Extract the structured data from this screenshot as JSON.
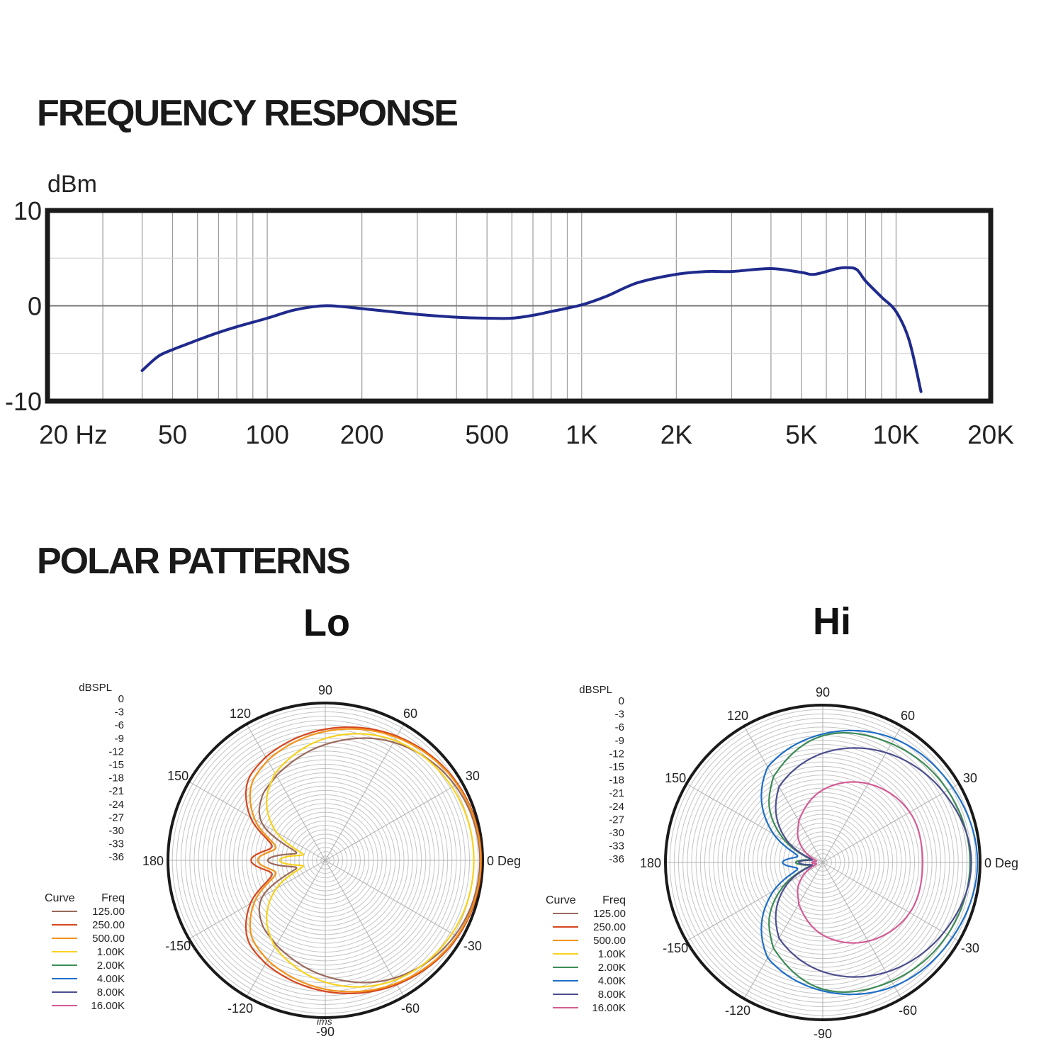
{
  "page": {
    "freq_title": "FREQUENCY RESPONSE",
    "polar_title": "POLAR PATTERNS"
  },
  "chart_data": [
    {
      "type": "line",
      "title": "FREQUENCY RESPONSE",
      "ylabel": "dBm",
      "xlabel": "",
      "x_scale": "log",
      "xlim": [
        20,
        20000
      ],
      "ylim": [
        -10,
        10
      ],
      "grid": true,
      "x_tick_labels": [
        {
          "value": 20,
          "label": "20  Hz"
        },
        {
          "value": 50,
          "label": "50"
        },
        {
          "value": 100,
          "label": "100"
        },
        {
          "value": 200,
          "label": "200"
        },
        {
          "value": 500,
          "label": "500"
        },
        {
          "value": 1000,
          "label": "1K"
        },
        {
          "value": 2000,
          "label": "2K"
        },
        {
          "value": 5000,
          "label": "5K"
        },
        {
          "value": 10000,
          "label": "10K"
        },
        {
          "value": 20000,
          "label": "20K"
        }
      ],
      "y_tick_labels": [
        {
          "value": 10,
          "label": "10"
        },
        {
          "value": 0,
          "label": "0"
        },
        {
          "value": -10,
          "label": "-10"
        }
      ],
      "line_color": "#1f2a8c",
      "series": [
        {
          "x": [
            40,
            45,
            50,
            60,
            70,
            80,
            100,
            120,
            140,
            160,
            200,
            300,
            400,
            500,
            600,
            700,
            800,
            1000,
            1200,
            1500,
            2000,
            2500,
            3000,
            4000,
            5000,
            5500,
            6500,
            7000,
            7500,
            8000,
            9000,
            10000,
            11000,
            12000
          ],
          "y": [
            -6.8,
            -5.3,
            -4.6,
            -3.6,
            -2.8,
            -2.2,
            -1.3,
            -0.5,
            -0.1,
            0.0,
            -0.3,
            -0.9,
            -1.2,
            -1.3,
            -1.3,
            -1.0,
            -0.6,
            0.1,
            1.0,
            2.4,
            3.3,
            3.6,
            3.6,
            3.9,
            3.5,
            3.3,
            3.9,
            4.0,
            3.8,
            2.6,
            0.9,
            -0.6,
            -3.6,
            -9.0
          ]
        }
      ]
    },
    {
      "type": "polar",
      "title": "Lo",
      "radial_label": "dBSPL",
      "radial_ticks": [
        "0",
        "-3",
        "-6",
        "-9",
        "-12",
        "-15",
        "-18",
        "-21",
        "-24",
        "-27",
        "-30",
        "-33",
        "-36"
      ],
      "radial_range": [
        -36,
        0
      ],
      "angle_labels": [
        {
          "deg": 0,
          "label": "0 Deg"
        },
        {
          "deg": 30,
          "label": "30"
        },
        {
          "deg": 60,
          "label": "60"
        },
        {
          "deg": 90,
          "label": "90"
        },
        {
          "deg": 120,
          "label": "120"
        },
        {
          "deg": 150,
          "label": "150"
        },
        {
          "deg": 180,
          "label": "180"
        },
        {
          "deg": -150,
          "label": "-150"
        },
        {
          "deg": -120,
          "label": "-120"
        },
        {
          "deg": -90,
          "label": "-90"
        },
        {
          "deg": -60,
          "label": "-60"
        },
        {
          "deg": -30,
          "label": "-30"
        }
      ],
      "legend": {
        "header_curve": "Curve",
        "header_freq": "Freq",
        "entries": [
          {
            "freq": "125.00",
            "color": "#9b6a5c"
          },
          {
            "freq": "250.00",
            "color": "#d6461e"
          },
          {
            "freq": "500.00",
            "color": "#f29419"
          },
          {
            "freq": "1.00K",
            "color": "#f7d21e"
          },
          {
            "freq": "2.00K",
            "color": "#3d8c57"
          },
          {
            "freq": "4.00K",
            "color": "#1e6fc8"
          },
          {
            "freq": "8.00K",
            "color": "#4b4e8e"
          },
          {
            "freq": "16.00K",
            "color": "#d45c96"
          }
        ]
      },
      "annotation": "ims",
      "series": [
        {
          "name": "125.00",
          "color": "#9b6a5c",
          "angles": [
            0,
            30,
            60,
            90,
            120,
            135,
            150,
            165,
            180
          ],
          "db": [
            -0.6,
            -1.7,
            -4.8,
            -9.5,
            -13.6,
            -15.5,
            -19.4,
            -29.2,
            -22.8
          ]
        },
        {
          "name": "250.00",
          "color": "#d6461e",
          "angles": [
            0,
            30,
            60,
            90,
            120,
            135,
            150,
            165,
            180
          ],
          "db": [
            -0.3,
            -1.0,
            -3.2,
            -6.0,
            -8.7,
            -10.8,
            -16.2,
            -23.4,
            -19.0
          ]
        },
        {
          "name": "500.00",
          "color": "#f29419",
          "angles": [
            0,
            30,
            60,
            90,
            120,
            135,
            150,
            165,
            180
          ],
          "db": [
            -0.4,
            -1.2,
            -3.5,
            -6.5,
            -9.6,
            -12.0,
            -17.4,
            -24.3,
            -20.5
          ]
        },
        {
          "name": "1.00K",
          "color": "#f7d21e",
          "angles": [
            0,
            30,
            60,
            90,
            120,
            135,
            150,
            165,
            180
          ],
          "db": [
            -2.0,
            -2.5,
            -4.3,
            -8.1,
            -13.0,
            -17.0,
            -23.0,
            -30.8,
            -25.5
          ]
        }
      ]
    },
    {
      "type": "polar",
      "title": "Hi",
      "radial_label": "dBSPL",
      "radial_ticks": [
        "0",
        "-3",
        "-6",
        "-9",
        "-12",
        "-15",
        "-18",
        "-21",
        "-24",
        "-27",
        "-30",
        "-33",
        "-36"
      ],
      "radial_range": [
        -36,
        0
      ],
      "angle_labels": [
        {
          "deg": 0,
          "label": "0 Deg"
        },
        {
          "deg": 30,
          "label": "30"
        },
        {
          "deg": 60,
          "label": "60"
        },
        {
          "deg": 90,
          "label": "90"
        },
        {
          "deg": 120,
          "label": "120"
        },
        {
          "deg": 150,
          "label": "150"
        },
        {
          "deg": 180,
          "label": "180"
        },
        {
          "deg": -150,
          "label": "-150"
        },
        {
          "deg": -120,
          "label": "-120"
        },
        {
          "deg": -90,
          "label": "-90"
        },
        {
          "deg": -60,
          "label": "-60"
        },
        {
          "deg": -30,
          "label": "-30"
        }
      ],
      "legend": {
        "header_curve": "Curve",
        "header_freq": "Freq",
        "entries": [
          {
            "freq": "125.00",
            "color": "#9b6a5c"
          },
          {
            "freq": "250.00",
            "color": "#d6461e"
          },
          {
            "freq": "500.00",
            "color": "#f29419"
          },
          {
            "freq": "1.00K",
            "color": "#f7d21e"
          },
          {
            "freq": "2.00K",
            "color": "#3d8c57"
          },
          {
            "freq": "4.00K",
            "color": "#1e6fc8"
          },
          {
            "freq": "8.00K",
            "color": "#4b4e8e"
          },
          {
            "freq": "16.00K",
            "color": "#d45c96"
          }
        ]
      },
      "series": [
        {
          "name": "2.00K",
          "color": "#3d8c57",
          "angles": [
            0,
            30,
            60,
            90,
            120,
            135,
            150,
            165,
            180
          ],
          "db": [
            -2.3,
            -3.0,
            -4.6,
            -7.0,
            -13.4,
            -18.8,
            -26.0,
            -33.0,
            -29.8
          ]
        },
        {
          "name": "4.00K",
          "color": "#1e6fc8",
          "angles": [
            0,
            30,
            60,
            90,
            120,
            135,
            150,
            165,
            180
          ],
          "db": [
            -0.6,
            -1.7,
            -3.3,
            -6.6,
            -10.8,
            -16.2,
            -23.0,
            -30.0,
            -26.8
          ]
        },
        {
          "name": "8.00K",
          "color": "#4b4e8e",
          "angles": [
            0,
            30,
            60,
            90,
            120,
            135,
            150,
            165,
            180
          ],
          "db": [
            -2.0,
            -4.0,
            -7.0,
            -11.0,
            -16.0,
            -21.0,
            -27.0,
            -33.5,
            -30.5
          ]
        },
        {
          "name": "16.00K",
          "color": "#d45c96",
          "angles": [
            0,
            30,
            60,
            90,
            120,
            135,
            150,
            165,
            180
          ],
          "db": [
            -13.2,
            -13.0,
            -15.2,
            -19.4,
            -25.0,
            -28.0,
            -31.5,
            -34.5,
            -33.5
          ]
        }
      ]
    }
  ]
}
